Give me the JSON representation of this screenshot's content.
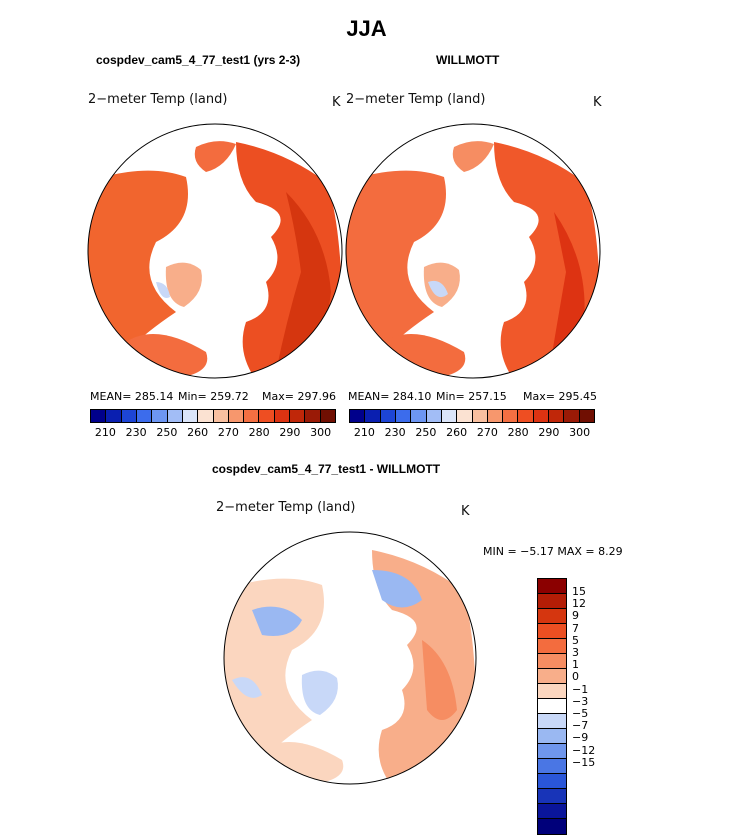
{
  "title": "JJA",
  "left_panel": {
    "header": "cospdev_cam5_4_77_test1 (yrs 2-3)",
    "variable": "2−meter Temp (land)",
    "units": "K",
    "mean_text": "MEAN= 285.14",
    "min_text": "Min= 259.72",
    "max_text": "Max= 297.96"
  },
  "right_panel": {
    "header": "WILLMOTT",
    "variable": "2−meter Temp (land)",
    "units": "K",
    "mean_text": "MEAN= 284.10",
    "min_text": "Min= 257.15",
    "max_text": "Max= 295.45"
  },
  "abs_colorbar": {
    "colors": [
      "#00008b",
      "#0a1fb0",
      "#1d45d5",
      "#3c6cec",
      "#6d96f2",
      "#a2bdf6",
      "#dbe5f9",
      "#fbe2d2",
      "#f9c0a0",
      "#f7976d",
      "#f46f42",
      "#ee4e22",
      "#dd3312",
      "#c02709",
      "#9a1a06",
      "#700f02"
    ],
    "ticks": [
      "210",
      "230",
      "250",
      "260",
      "270",
      "280",
      "290",
      "300"
    ]
  },
  "diff_panel": {
    "header": "cospdev_cam5_4_77_test1 - WILLMOTT",
    "variable": "2−meter Temp (land)",
    "units": "K",
    "minmax_text": "MIN =  −5.17 MAX =   8.29"
  },
  "diff_colorbar": {
    "colors": [
      "#8b0000",
      "#b31d06",
      "#d5360f",
      "#ec4f22",
      "#f36c3e",
      "#f68d62",
      "#f8ae8a",
      "#fbd6bf",
      "#ffffff",
      "#c8d8f8",
      "#9ab8f2",
      "#6f96ec",
      "#4a76e4",
      "#2a56d8",
      "#1834b8",
      "#0a159a",
      "#00007a"
    ],
    "ticks": [
      "15",
      "12",
      "9",
      "7",
      "5",
      "3",
      "1",
      "0",
      "−1",
      "−3",
      "−5",
      "−7",
      "−9",
      "−12",
      "−15"
    ]
  }
}
